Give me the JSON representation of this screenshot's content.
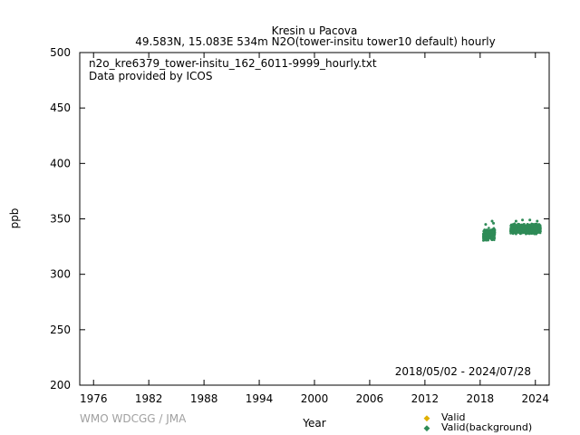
{
  "chart_data": {
    "type": "scatter",
    "title": "Kresin u Pacova",
    "subtitle": "49.583N, 15.083E 534m    N2O(tower-insitu tower10 default) hourly",
    "file_label": "n2o_kre6379_tower-insitu_162_6011-9999_hourly.txt",
    "provider_label": "Data provided by ICOS",
    "date_range": "2018/05/02 - 2024/07/28",
    "xlabel": "Year",
    "ylabel": "ppb",
    "credit": "WMO WDCGG / JMA",
    "xlim": [
      1974.5,
      2025.5
    ],
    "ylim": [
      200,
      500
    ],
    "xticks": [
      1976,
      1982,
      1988,
      1994,
      2000,
      2006,
      2012,
      2018,
      2024
    ],
    "yticks": [
      200,
      250,
      300,
      350,
      400,
      450,
      500
    ],
    "legend_position": "bottom-right",
    "series": [
      {
        "name": "Valid",
        "color": "#e0b000",
        "points": []
      },
      {
        "name": "Valid(background)",
        "color": "#2e8b57",
        "clusters": [
          {
            "x_start": 2018.34,
            "x_end": 2019.6,
            "y_low": 330,
            "y_high": 342,
            "spikes": [
              [
                2018.6,
                345
              ],
              [
                2019.3,
                348
              ],
              [
                2019.45,
                346
              ]
            ]
          },
          {
            "x_start": 2021.3,
            "x_end": 2024.57,
            "y_low": 336,
            "y_high": 346,
            "spikes": [
              [
                2021.9,
                348
              ],
              [
                2022.6,
                349
              ],
              [
                2023.4,
                349
              ],
              [
                2024.2,
                348
              ]
            ]
          }
        ]
      }
    ]
  }
}
